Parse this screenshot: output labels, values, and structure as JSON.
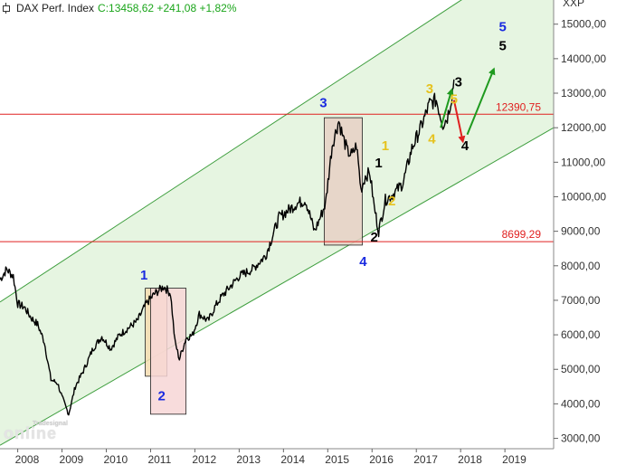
{
  "header": {
    "index_name": "DAX Perf. Index",
    "quote": "C:13458,62 +241,08 +1,82%",
    "corner_label": "XXP"
  },
  "watermark": {
    "top": "Tradesignal",
    "main": "online"
  },
  "colors": {
    "price": "#000000",
    "channel_fill": "#e6f5e1",
    "channel_line": "#3e9e3e",
    "resistance": "#e02020",
    "wave_blue": "#1a2be0",
    "wave_yellow": "#e6c21e",
    "wave_black": "#000000",
    "arrow_green": "#1f9a1f",
    "arrow_red": "#e02020",
    "box_orange": "#f4dcb0",
    "box_pink": "#f7d6d6",
    "box_brown": "#e6d0c4"
  },
  "chart_data": {
    "type": "line",
    "title": "DAX Perf. Index",
    "x_ticks": [
      "2008",
      "2009",
      "2010",
      "2011",
      "2012",
      "2013",
      "2014",
      "2015",
      "2016",
      "2017",
      "2018",
      "2019"
    ],
    "y_ticks": [
      3000,
      4000,
      5000,
      6000,
      7000,
      8000,
      9000,
      10000,
      11000,
      12000,
      13000,
      14000,
      15000
    ],
    "y_tick_labels": [
      "3000,00",
      "4000,00",
      "5000,00",
      "6000,00",
      "7000,00",
      "8000,00",
      "9000,00",
      "10000,00",
      "11000,00",
      "12000,00",
      "13000,00",
      "14000,00",
      "15000,00"
    ],
    "ylim": [
      2700,
      15700
    ],
    "xlim": [
      2007.6,
      2020.1
    ],
    "grid": false,
    "series": [
      {
        "x": [
          2007.6,
          2007.75,
          2007.9,
          2008.0,
          2008.15,
          2008.3,
          2008.45,
          2008.6,
          2008.75,
          2008.9,
          2009.0,
          2009.15,
          2009.3,
          2009.5,
          2009.7,
          2009.9,
          2010.1,
          2010.3,
          2010.5,
          2010.7,
          2010.9,
          2011.1,
          2011.3,
          2011.45,
          2011.55,
          2011.65,
          2011.8,
          2011.95,
          2012.1,
          2012.3,
          2012.45,
          2012.6,
          2012.8,
          2013.0,
          2013.3,
          2013.6,
          2013.9,
          2014.1,
          2014.3,
          2014.5,
          2014.7,
          2014.8,
          2014.95,
          2015.1,
          2015.25,
          2015.35,
          2015.45,
          2015.55,
          2015.65,
          2015.75,
          2015.85,
          2015.95,
          2016.05,
          2016.15,
          2016.3,
          2016.5,
          2016.7,
          2016.9,
          2017.1,
          2017.3,
          2017.45,
          2017.6,
          2017.7,
          2017.8,
          2017.85
        ],
        "values": [
          7600,
          7900,
          7700,
          6900,
          6800,
          6500,
          6300,
          5800,
          4700,
          4600,
          4200,
          3700,
          4500,
          5000,
          5600,
          5950,
          5600,
          6000,
          6200,
          6400,
          6900,
          7200,
          7400,
          7200,
          5800,
          5300,
          5900,
          6000,
          6600,
          6400,
          6800,
          7100,
          7400,
          7700,
          7900,
          8300,
          9400,
          9600,
          9800,
          9900,
          9000,
          9300,
          9800,
          11500,
          12200,
          11700,
          11300,
          11200,
          11500,
          10200,
          10600,
          10700,
          9700,
          9000,
          9900,
          10100,
          10400,
          11400,
          12000,
          12700,
          12800,
          12100,
          12300,
          12900,
          13400
        ]
      }
    ],
    "annotations": {
      "resistance_lines": [
        12390.75,
        8699.29
      ],
      "resistance_labels": [
        "12390,75",
        "8699,29"
      ],
      "channel": {
        "upper": {
          "from": [
            2007.6,
            6950
          ],
          "to": [
            2020.1,
            17450
          ]
        },
        "lower": {
          "from": [
            2007.6,
            2800
          ],
          "to": [
            2020.1,
            12000
          ]
        }
      },
      "boxes": [
        {
          "x": [
            2010.88,
            2011.37
          ],
          "y": [
            4800,
            7350
          ],
          "color": "box_orange"
        },
        {
          "x": [
            2011.0,
            2011.8
          ],
          "y": [
            3700,
            7350
          ],
          "color": "box_pink"
        },
        {
          "x": [
            2014.92,
            2015.78
          ],
          "y": [
            8599,
            12290
          ],
          "color": "box_brown"
        }
      ],
      "wave_labels": [
        {
          "text": "1",
          "x": 2010.85,
          "y": 7600,
          "color": "wave_blue"
        },
        {
          "text": "2",
          "x": 2011.25,
          "y": 4100,
          "color": "wave_blue"
        },
        {
          "text": "3",
          "x": 2014.9,
          "y": 12600,
          "color": "wave_blue"
        },
        {
          "text": "4",
          "x": 2015.8,
          "y": 8000,
          "color": "wave_blue"
        },
        {
          "text": "5",
          "x": 2018.95,
          "y": 14800,
          "color": "wave_blue"
        },
        {
          "text": "1",
          "x": 2016.15,
          "y": 10850,
          "color": "wave_black"
        },
        {
          "text": "2",
          "x": 2016.05,
          "y": 8700,
          "color": "wave_black"
        },
        {
          "text": "3",
          "x": 2017.95,
          "y": 13200,
          "color": "wave_black"
        },
        {
          "text": "4",
          "x": 2018.1,
          "y": 11350,
          "color": "wave_black"
        },
        {
          "text": "5",
          "x": 2018.95,
          "y": 14250,
          "color": "wave_black"
        },
        {
          "text": "1",
          "x": 2016.3,
          "y": 11350,
          "color": "wave_yellow"
        },
        {
          "text": "2",
          "x": 2016.45,
          "y": 9750,
          "color": "wave_yellow"
        },
        {
          "text": "3",
          "x": 2017.3,
          "y": 13000,
          "color": "wave_yellow"
        },
        {
          "text": "4",
          "x": 2017.35,
          "y": 11550,
          "color": "wave_yellow"
        },
        {
          "text": "5",
          "x": 2017.85,
          "y": 12700,
          "color": "wave_yellow"
        }
      ],
      "arrows": [
        {
          "from": [
            2017.55,
            12000
          ],
          "to": [
            2017.8,
            13100
          ],
          "color": "arrow_green"
        },
        {
          "from": [
            2017.85,
            12800
          ],
          "to": [
            2018.05,
            11600
          ],
          "color": "arrow_red"
        },
        {
          "from": [
            2018.15,
            11800
          ],
          "to": [
            2018.75,
            13700
          ],
          "color": "arrow_green"
        }
      ]
    }
  }
}
